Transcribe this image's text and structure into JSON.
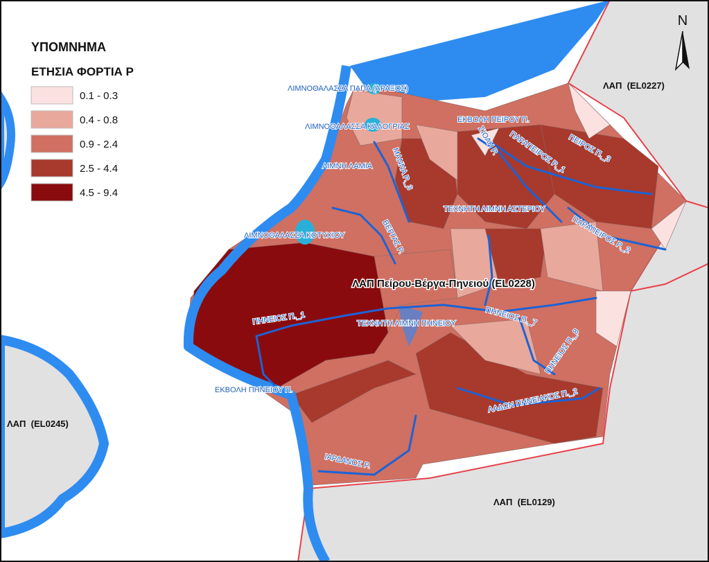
{
  "legend": {
    "title": "ΥΠΟΜΝΗΜΑ",
    "subtitle": "ΕΤΗΣΙΑ ΦΟΡΤΙΑ Ρ",
    "items": [
      {
        "label": "0.1 - 0.3",
        "color": "#fbe2e0"
      },
      {
        "label": "0.4 - 0.8",
        "color": "#e8a89c"
      },
      {
        "label": "0.9 - 2.4",
        "color": "#cf7062"
      },
      {
        "label": "2.5 - 4.4",
        "color": "#a8392d"
      },
      {
        "label": "4.5 - 9.4",
        "color": "#8a0b0e"
      }
    ]
  },
  "north": "N",
  "main_label": "ΛΑΠ Πείρου-Βέργα-Πηνειού (EL0228)",
  "regions": [
    "ΛΑΠ  (EL0227)",
    "ΛΑΠ  (EL0245)",
    "ΛΑΠ  (EL0129)"
  ],
  "water_labels": [
    "ΛΙΜΝΟΘΑΛΑΣΣΑ ΠΑΠΑ (ΑΡΑΞΟΣ)",
    "ΛΙΜΝΟΘΑΛΑΣΣΑ ΚΑΛΟΓΡΙΑΣ",
    "ΕΚΒΟΛΗ ΠΕΙΡΟΥ Π.",
    "ΛΙΜΝΗ ΛΑΜΙΑ",
    "ΜΑΝΝΑ Ρ._3",
    "ΣΙΟΛΗ Ρ.",
    "ΠΑΡΑΠΕΙΡΟΣ Ρ._1",
    "ΠΕΙΡΟΣ Π._3",
    "ΤΕΧΝΗΤΗ ΛΙΜΝΗ ΑΣΤΕΡΙΟΥ",
    "ΠΑΡΑΠΕΙΡΟΣ Ρ._2",
    "ΛΙΜΝΟΘΑΛΑΣΣΑ ΚΟΤΥΧΙΟΥ",
    "ΒΕΡΓΑΣ Ρ.",
    "ΠΗΝΕΙΟΣ Π._1",
    "ΤΕΧΝΗΤΗ ΛΙΜΝΗ ΠΗΝΕΙΟΥ",
    "ΠΗΝΕΙΟΣ Π._7",
    "ΠΗΝΕΙΟΣ Π._8",
    "ΕΚΒΟΛΗ ΠΗΝΕΙΟΥ Π.",
    "ΛΑΔΩΝ ΠΗΝΕΙΑΚΟΣ Π._2",
    "ΙΑΡΔΑΝΟΣ Ρ."
  ]
}
